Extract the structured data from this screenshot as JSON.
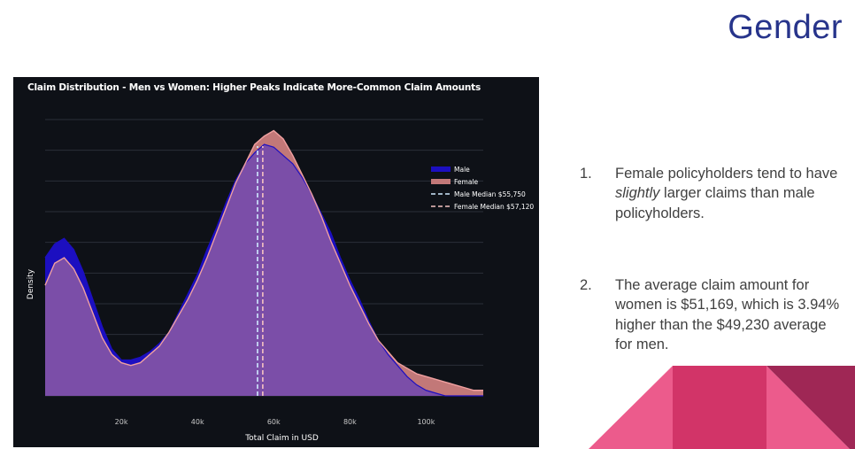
{
  "slide": {
    "title": "Gender"
  },
  "notes": [
    {
      "number": "1.",
      "text_before": "Female policyholders tend to have ",
      "emphasis": "slightly",
      "text_after": " larger claims than male policyholders."
    },
    {
      "number": "2.",
      "text_before": "The average claim amount for women is $51,169, which is 3.94% higher than the $49,230 average for men.",
      "emphasis": "",
      "text_after": ""
    }
  ],
  "colors": {
    "title": "#27348b",
    "chart_bg": "#0e1117",
    "male": "#1c0fc0",
    "female_fill": "#c27878",
    "overlap": "#7b4ea8",
    "female_line": "#f0a0a0",
    "male_median": "#cfe9ff",
    "female_median": "#f4c2c2",
    "decor_pink": "#ec5b8c",
    "decor_magenta": "#d23468",
    "decor_dark": "#9f2755"
  },
  "chart_data": {
    "type": "area",
    "title": "Claim Distribution - Men vs Women: Higher Peaks Indicate More-Common Claim Amounts",
    "xlabel": "Total Claim in USD",
    "ylabel": "Density",
    "xlim": [
      0,
      115000
    ],
    "ylim": [
      0,
      1
    ],
    "x_tick_labels": [
      "20k",
      "40k",
      "60k",
      "80k",
      "100k"
    ],
    "x_ticks": [
      20000,
      40000,
      60000,
      80000,
      100000
    ],
    "grid": true,
    "legend_position": "right",
    "legend": [
      "Male",
      "Female",
      "Male Median $55,750",
      "Female Median $57,120"
    ],
    "x": [
      0,
      2500,
      5000,
      7500,
      10000,
      12500,
      15000,
      17500,
      20000,
      22500,
      25000,
      27500,
      30000,
      32500,
      35000,
      37500,
      40000,
      42500,
      45000,
      47500,
      50000,
      52500,
      55000,
      57500,
      60000,
      62500,
      65000,
      67500,
      70000,
      72500,
      75000,
      77500,
      80000,
      82500,
      85000,
      87500,
      90000,
      92500,
      95000,
      97500,
      100000,
      102500,
      105000,
      107500,
      110000,
      112500,
      115000
    ],
    "series": [
      {
        "name": "Male",
        "values": [
          0.5,
          0.55,
          0.57,
          0.53,
          0.45,
          0.35,
          0.25,
          0.17,
          0.13,
          0.13,
          0.14,
          0.16,
          0.19,
          0.23,
          0.3,
          0.37,
          0.44,
          0.53,
          0.61,
          0.7,
          0.78,
          0.84,
          0.88,
          0.91,
          0.9,
          0.87,
          0.84,
          0.79,
          0.73,
          0.66,
          0.59,
          0.5,
          0.42,
          0.35,
          0.27,
          0.2,
          0.15,
          0.11,
          0.07,
          0.04,
          0.02,
          0.01,
          0.0,
          0.0,
          0.0,
          0.0,
          0.0
        ]
      },
      {
        "name": "Female",
        "values": [
          0.4,
          0.48,
          0.5,
          0.46,
          0.39,
          0.3,
          0.21,
          0.15,
          0.12,
          0.11,
          0.12,
          0.15,
          0.18,
          0.23,
          0.29,
          0.35,
          0.42,
          0.5,
          0.59,
          0.68,
          0.77,
          0.84,
          0.91,
          0.94,
          0.96,
          0.93,
          0.87,
          0.8,
          0.73,
          0.65,
          0.56,
          0.48,
          0.4,
          0.33,
          0.26,
          0.2,
          0.16,
          0.12,
          0.1,
          0.08,
          0.07,
          0.06,
          0.05,
          0.04,
          0.03,
          0.02,
          0.02
        ]
      }
    ],
    "medians": [
      {
        "name": "Male Median $55,750",
        "x": 55750
      },
      {
        "name": "Female Median $57,120",
        "x": 57120
      }
    ]
  }
}
